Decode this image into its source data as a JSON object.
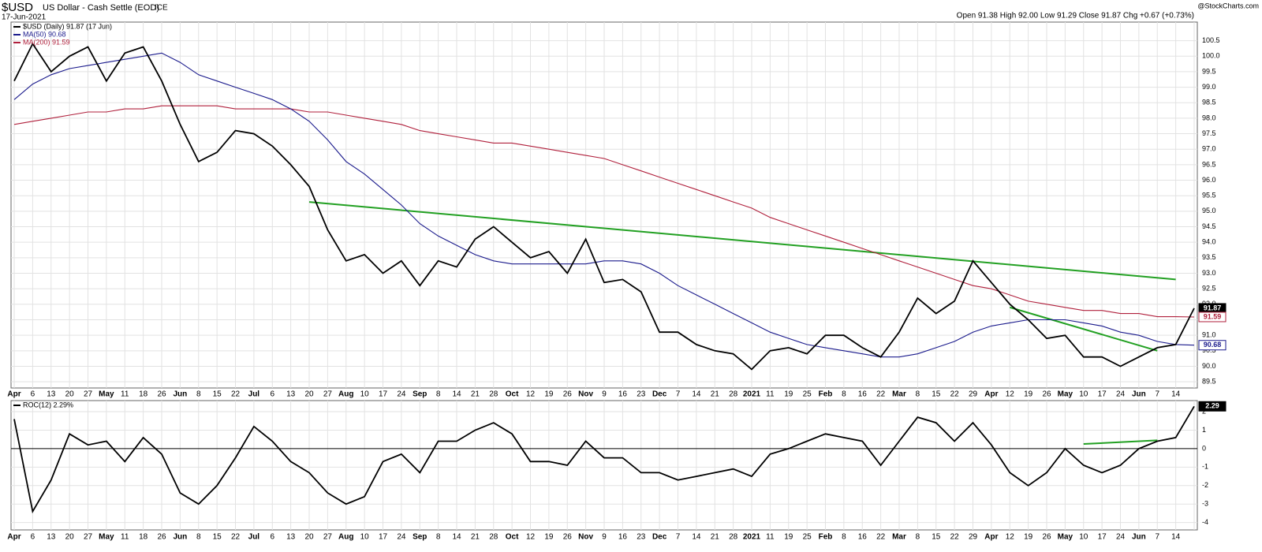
{
  "chart_data": [
    {
      "type": "line",
      "title": "$USD",
      "subtitle": "US Dollar - Cash Settle (EOD)",
      "exchange": "ICE",
      "date": "17-Jun-2021",
      "quote": "Open 91.38  High 92.00  Low 91.29  Close 91.87  Chg +0.67 (+0.73%)",
      "credit": "@StockCharts.com",
      "categories": [
        "Apr",
        "6",
        "13",
        "20",
        "27",
        "May",
        "11",
        "18",
        "26",
        "Jun",
        "8",
        "15",
        "22",
        "Jul",
        "6",
        "13",
        "20",
        "27",
        "Aug",
        "10",
        "17",
        "24",
        "Sep",
        "8",
        "14",
        "21",
        "28",
        "Oct",
        "12",
        "19",
        "26",
        "Nov",
        "9",
        "16",
        "23",
        "Dec",
        "7",
        "14",
        "21",
        "28",
        "2021",
        "11",
        "19",
        "25",
        "Feb",
        "8",
        "16",
        "22",
        "Mar",
        "8",
        "15",
        "22",
        "29",
        "Apr",
        "12",
        "19",
        "26",
        "May",
        "10",
        "17",
        "24",
        "Jun",
        "7",
        "14",
        null
      ],
      "series": [
        {
          "name": "$USD (Daily) 91.87 (17 Jun)",
          "color": "#000000",
          "badge": "91.87",
          "values": [
            99.2,
            100.4,
            99.5,
            100.0,
            100.3,
            99.2,
            100.1,
            100.3,
            99.2,
            97.8,
            96.6,
            96.9,
            97.6,
            97.5,
            97.1,
            96.5,
            95.8,
            94.4,
            93.4,
            93.6,
            93.0,
            93.4,
            92.6,
            93.4,
            93.2,
            94.1,
            94.5,
            94.0,
            93.5,
            93.7,
            93.0,
            94.1,
            92.7,
            92.8,
            92.4,
            91.1,
            91.1,
            90.7,
            90.5,
            90.4,
            89.9,
            90.5,
            90.6,
            90.4,
            91.0,
            91.0,
            90.6,
            90.3,
            91.1,
            92.2,
            91.7,
            92.1,
            93.4,
            92.7,
            92.0,
            91.5,
            90.9,
            91.0,
            90.3,
            90.3,
            90.0,
            90.3,
            90.6,
            90.7,
            91.87
          ]
        },
        {
          "name": "MA(50) 90.68",
          "color": "#1a1a8c",
          "badge": "90.68",
          "values": [
            98.6,
            99.1,
            99.4,
            99.6,
            99.7,
            99.8,
            99.9,
            100.0,
            100.1,
            99.8,
            99.4,
            99.2,
            99.0,
            98.8,
            98.6,
            98.3,
            97.9,
            97.3,
            96.6,
            96.2,
            95.7,
            95.2,
            94.6,
            94.2,
            93.9,
            93.6,
            93.4,
            93.3,
            93.3,
            93.3,
            93.3,
            93.3,
            93.4,
            93.4,
            93.3,
            93.0,
            92.6,
            92.3,
            92.0,
            91.7,
            91.4,
            91.1,
            90.9,
            90.7,
            90.6,
            90.5,
            90.4,
            90.3,
            90.3,
            90.4,
            90.6,
            90.8,
            91.1,
            91.3,
            91.4,
            91.5,
            91.5,
            91.5,
            91.4,
            91.3,
            91.1,
            91.0,
            90.8,
            90.7,
            90.68
          ]
        },
        {
          "name": "MA(200) 91.59",
          "color": "#b0203c",
          "badge": "91.59",
          "values": [
            97.8,
            97.9,
            98.0,
            98.1,
            98.2,
            98.2,
            98.3,
            98.3,
            98.4,
            98.4,
            98.4,
            98.4,
            98.3,
            98.3,
            98.3,
            98.3,
            98.2,
            98.2,
            98.1,
            98.0,
            97.9,
            97.8,
            97.6,
            97.5,
            97.4,
            97.3,
            97.2,
            97.2,
            97.1,
            97.0,
            96.9,
            96.8,
            96.7,
            96.5,
            96.3,
            96.1,
            95.9,
            95.7,
            95.5,
            95.3,
            95.1,
            94.8,
            94.6,
            94.4,
            94.2,
            94.0,
            93.8,
            93.6,
            93.4,
            93.2,
            93.0,
            92.8,
            92.6,
            92.5,
            92.3,
            92.1,
            92.0,
            91.9,
            91.8,
            91.8,
            91.7,
            91.7,
            91.6,
            91.6,
            91.59
          ]
        }
      ],
      "trendlines": [
        {
          "from": [
            16,
            95.3
          ],
          "to": [
            63,
            92.8
          ],
          "color": "#22a022"
        },
        {
          "from": [
            54,
            91.9
          ],
          "to": [
            62,
            90.5
          ],
          "color": "#22a022"
        }
      ],
      "ylim": [
        89.3,
        101.1
      ],
      "yticks": [
        89.5,
        {
          "value": 90,
          "label": "90.0"
        },
        90.5,
        {
          "value": 91,
          "label": "91.0"
        },
        91.5,
        {
          "value": 92,
          "label": "92.0"
        },
        92.5,
        {
          "value": 93,
          "label": "93.0"
        },
        93.5,
        {
          "value": 94,
          "label": "94.0"
        },
        94.5,
        {
          "value": 95,
          "label": "95.0"
        },
        95.5,
        {
          "value": 96,
          "label": "96.0"
        },
        96.5,
        {
          "value": 97,
          "label": "97.0"
        },
        97.5,
        {
          "value": 98,
          "label": "98.0"
        },
        98.5,
        {
          "value": 99,
          "label": "99.0"
        },
        99.5,
        {
          "value": 100,
          "label": "100.0"
        },
        100.5
      ],
      "grid": true
    },
    {
      "type": "line",
      "categories": [
        "Apr",
        "6",
        "13",
        "20",
        "27",
        "May",
        "11",
        "18",
        "26",
        "Jun",
        "8",
        "15",
        "22",
        "Jul",
        "6",
        "13",
        "20",
        "27",
        "Aug",
        "10",
        "17",
        "24",
        "Sep",
        "8",
        "14",
        "21",
        "28",
        "Oct",
        "12",
        "19",
        "26",
        "Nov",
        "9",
        "16",
        "23",
        "Dec",
        "7",
        "14",
        "21",
        "28",
        "2021",
        "11",
        "19",
        "25",
        "Feb",
        "8",
        "16",
        "22",
        "Mar",
        "8",
        "15",
        "22",
        "29",
        "Apr",
        "12",
        "19",
        "26",
        "May",
        "10",
        "17",
        "24",
        "Jun",
        "7",
        "14",
        null
      ],
      "series": [
        {
          "name": "ROC(12) 2.29%",
          "color": "#000000",
          "badge": "2.29",
          "values": [
            1.6,
            -3.4,
            -1.7,
            0.8,
            0.2,
            0.4,
            -0.7,
            0.6,
            -0.3,
            -2.4,
            -3.0,
            -2.0,
            -0.5,
            1.2,
            0.4,
            -0.7,
            -1.3,
            -2.4,
            -3.0,
            -2.6,
            -0.7,
            -0.3,
            -1.3,
            0.4,
            0.4,
            1.0,
            1.4,
            0.8,
            -0.7,
            -0.7,
            -0.9,
            0.4,
            -0.5,
            -0.5,
            -1.3,
            -1.3,
            -1.7,
            -1.5,
            -1.3,
            -1.1,
            -1.5,
            -0.3,
            0.0,
            0.4,
            0.8,
            0.6,
            0.4,
            -0.9,
            0.4,
            1.7,
            1.4,
            0.4,
            1.4,
            0.2,
            -1.3,
            -2.0,
            -1.3,
            0.0,
            -0.9,
            -1.3,
            -0.9,
            0.0,
            0.4,
            0.6,
            2.29
          ]
        }
      ],
      "trendlines": [
        {
          "from": [
            58,
            0.25
          ],
          "to": [
            62,
            0.45
          ],
          "color": "#22a022"
        }
      ],
      "ylim": [
        -4.4,
        2.6
      ],
      "yticks": [
        2,
        1,
        0,
        -1,
        -2,
        -3,
        -4
      ],
      "zero_line": true,
      "grid": true
    }
  ]
}
